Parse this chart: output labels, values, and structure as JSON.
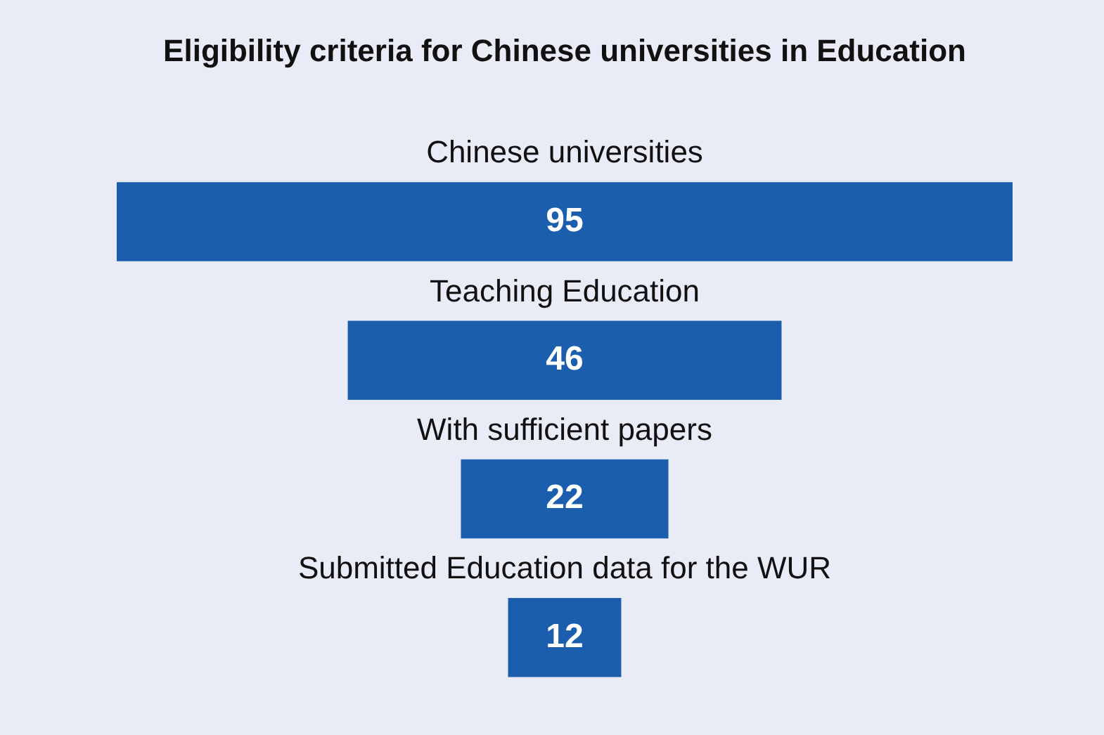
{
  "chart_data": {
    "type": "other",
    "title": "Eligibility criteria for Chinese universities in Education",
    "categories": [
      "Chinese universities",
      "Teaching Education",
      "With sufficient papers",
      "Submitted Education data for the WUR"
    ],
    "values": [
      95,
      46,
      22,
      12
    ],
    "color": "#1a5ead",
    "data_labels": true
  }
}
